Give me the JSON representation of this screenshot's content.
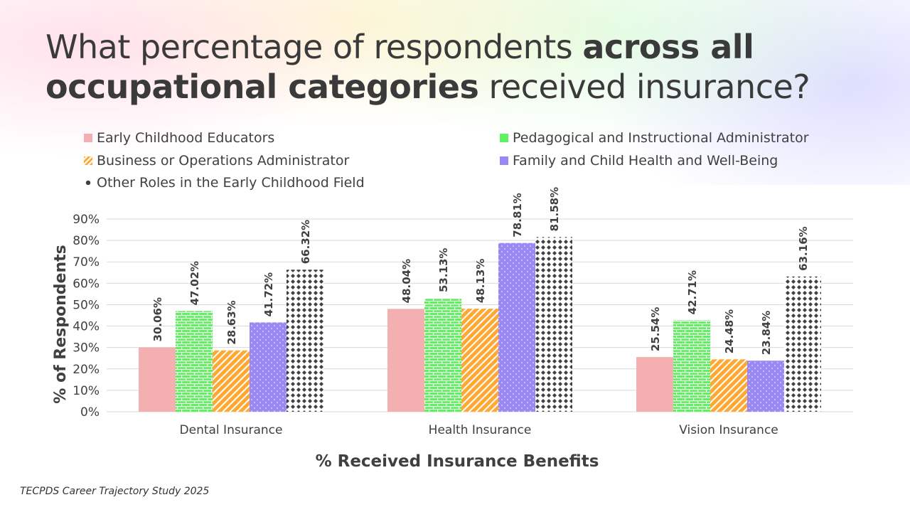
{
  "title": {
    "part1": "What percentage of respondents ",
    "bold": "across all occupational categories",
    "part2": " received insurance?"
  },
  "source": "TECPDS Career Trajectory Study 2025",
  "chart_data": {
    "type": "bar",
    "title": "",
    "xlabel": "% Received Insurance Benefits",
    "ylabel": "% of Respondents",
    "ylim": [
      0,
      90
    ],
    "yticks": [
      "0%",
      "10%",
      "20%",
      "30%",
      "40%",
      "50%",
      "60%",
      "70%",
      "80%",
      "90%"
    ],
    "grid": true,
    "legend_position": "top",
    "categories": [
      "Dental Insurance",
      "Health Insurance",
      "Vision Insurance"
    ],
    "series": [
      {
        "name": "Early Childhood Educators",
        "values": [
          30.06,
          48.04,
          25.54
        ],
        "labels": [
          "30.06%",
          "48.04%",
          "25.54%"
        ],
        "color": "#f4b0b0",
        "pattern": "solid"
      },
      {
        "name": "Pedagogical and Instructional Administrator",
        "values": [
          47.02,
          53.13,
          42.71
        ],
        "labels": [
          "47.02%",
          "53.13%",
          "42.71%"
        ],
        "color": "#5ef25e",
        "pattern": "brick"
      },
      {
        "name": "Business or Operations Administrator",
        "values": [
          28.63,
          48.13,
          24.48
        ],
        "labels": [
          "28.63%",
          "48.13%",
          "24.48%"
        ],
        "color": "#ffa833",
        "pattern": "diagonal"
      },
      {
        "name": "Family and Child Health and Well-Being",
        "values": [
          41.72,
          78.81,
          23.84
        ],
        "labels": [
          "41.72%",
          "78.81%",
          "23.84%"
        ],
        "color": "#9a88f5",
        "pattern": "dots"
      },
      {
        "name": "Other Roles in the Early Childhood Field",
        "values": [
          66.32,
          81.58,
          63.16
        ],
        "labels": [
          "66.32%",
          "81.58%",
          "63.16%"
        ],
        "color": "#404040",
        "pattern": "diamond"
      }
    ]
  }
}
